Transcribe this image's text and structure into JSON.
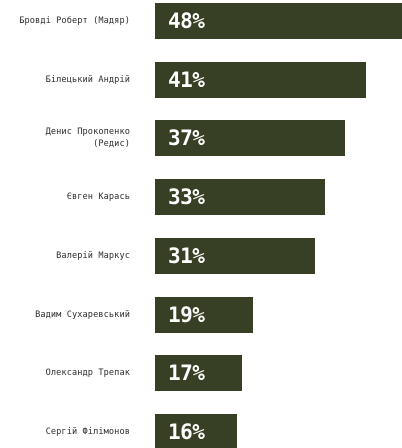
{
  "chart_data": {
    "type": "bar",
    "orientation": "horizontal",
    "categories": [
      "Бровді Роберт (Мадяр)",
      "Білецький Андрій",
      "Денис Прокопенко\n(Редис)",
      "Євген Карась",
      "Валерій Маркус",
      "Вадим Сухаревський",
      "Олександр Трепак",
      "Сергій Філімонов"
    ],
    "values": [
      48,
      41,
      37,
      33,
      31,
      19,
      17,
      16
    ],
    "value_labels": [
      "48%",
      "41%",
      "37%",
      "33%",
      "31%",
      "19%",
      "17%",
      "16%"
    ],
    "xlim": [
      0,
      48
    ],
    "grid": false,
    "colors": {
      "bar": "#373f24",
      "value_text": "#ffffff",
      "label_text": "#2d2d2d"
    }
  }
}
